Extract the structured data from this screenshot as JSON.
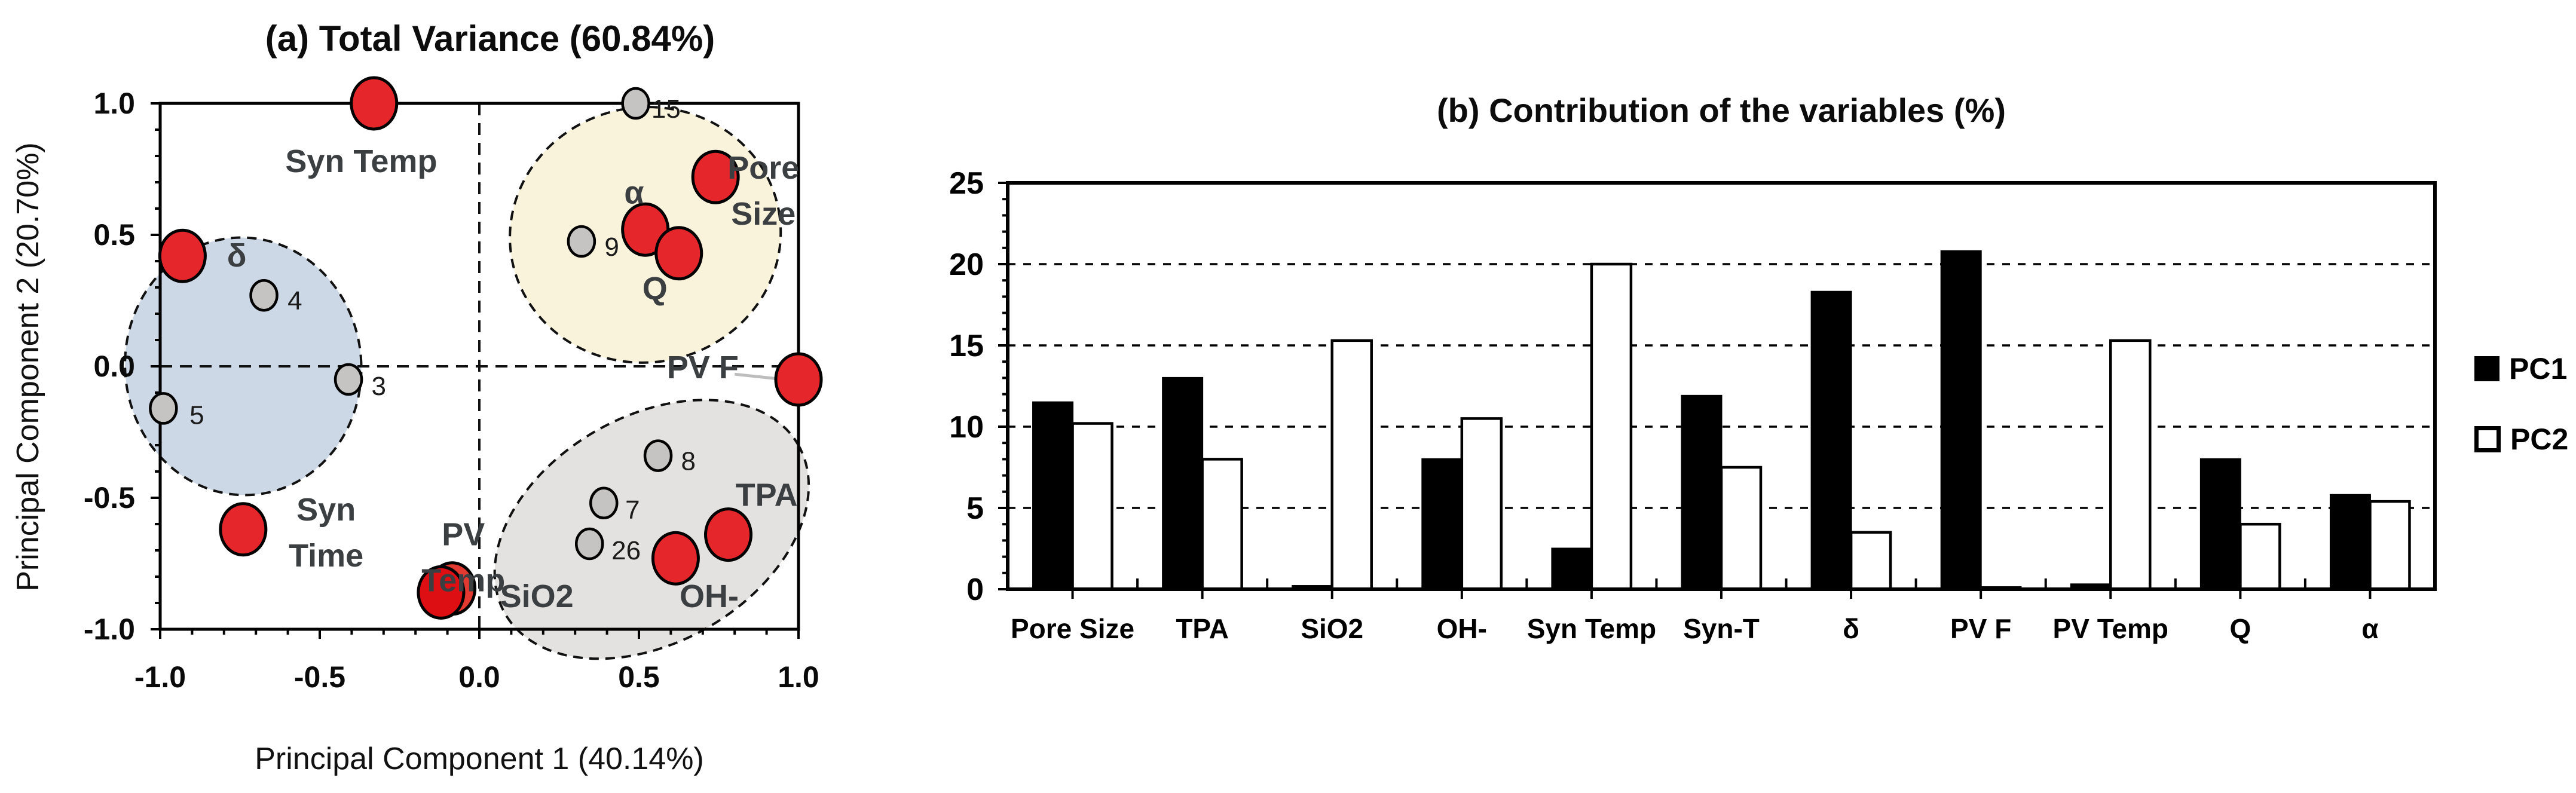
{
  "figure": {
    "background": "#ffffff"
  },
  "panel_a": {
    "title": "(a) Total Variance (60.84%)",
    "xlabel": "Principal Component 1 (40.14%)",
    "ylabel": "Principal Component 2 (20.70%)"
  },
  "panel_b": {
    "title": "(b) Contribution of the variables (%)",
    "legend": {
      "pc1": "PC1",
      "pc2": "PC2"
    }
  },
  "colors": {
    "red_point": "#e5262b",
    "red_point_dark": "#de0f13",
    "gray_point": "#c6c4c2",
    "point_outline": "#000000",
    "ellipse_blue": "#cdd8e6",
    "ellipse_cream": "#faf3dc",
    "ellipse_gray": "#e3e2e1",
    "label_text": "#3c3f41",
    "number_text": "#1b1b1b",
    "bar_pc1": "#000000",
    "bar_pc2": "#ffffff",
    "leader_line": "#bdbdbd"
  },
  "chart_data": [
    {
      "type": "scatter",
      "title": "(a) Total Variance (60.84%)",
      "xlabel": "Principal Component 1 (40.14%)",
      "ylabel": "Principal Component 2 (20.70%)",
      "xlim": [
        -1.0,
        1.0
      ],
      "ylim": [
        -1.0,
        1.0
      ],
      "xticks": [
        "-1.0",
        "-0.5",
        "0.0",
        "0.5",
        "1.0"
      ],
      "yticks": [
        "-1.0",
        "-0.5",
        "0.0",
        "0.5",
        "1.0"
      ],
      "minor_tick_step": 0.1,
      "zero_lines": true,
      "grid": false,
      "ellipses": [
        {
          "name": "cluster-blue",
          "cx": -0.74,
          "cy": 0.0,
          "rx": 0.37,
          "ry": 0.49,
          "rotation": -5,
          "fill": "#cdd8e6"
        },
        {
          "name": "cluster-cream",
          "cx": 0.52,
          "cy": 0.5,
          "rx": 0.425,
          "ry": 0.485,
          "rotation": -10,
          "fill": "#faf3dc"
        },
        {
          "name": "cluster-gray",
          "cx": 0.54,
          "cy": -0.62,
          "rx": 0.53,
          "ry": 0.43,
          "rotation": -30,
          "fill": "#e3e2e1"
        }
      ],
      "variables": [
        {
          "name": "Syn Temp",
          "x": -0.33,
          "y": 1.0,
          "label_lines": [
            "Syn Temp"
          ],
          "label_x": -0.37,
          "label_y": 0.78
        },
        {
          "name": "delta",
          "x": -0.93,
          "y": 0.42,
          "label_lines": [
            "δ"
          ],
          "label_x": -0.76,
          "label_y": 0.42
        },
        {
          "name": "Syn Time",
          "x": -0.74,
          "y": -0.62,
          "label_lines": [
            "Syn",
            "Time"
          ],
          "label_x": -0.48,
          "label_y": -0.545
        },
        {
          "name": "SiO2",
          "x": -0.085,
          "y": -0.845,
          "label_lines": [
            "SiO2"
          ],
          "label_x": 0.18,
          "label_y": -0.875,
          "fill": "#e23a30"
        },
        {
          "name": "PV Temp",
          "x": -0.12,
          "y": -0.86,
          "label_lines": [
            "PV",
            "Temp"
          ],
          "label_x": -0.05,
          "label_y": -0.64,
          "fill": "#de0f13"
        },
        {
          "name": "Pore Size",
          "x": 0.74,
          "y": 0.72,
          "label_lines": [
            "Pore",
            "Size"
          ],
          "label_x": 0.89,
          "label_y": 0.755
        },
        {
          "name": "alpha",
          "x": 0.52,
          "y": 0.52,
          "label_lines": [
            "α"
          ],
          "label_x": 0.485,
          "label_y": 0.66
        },
        {
          "name": "Q",
          "x": 0.625,
          "y": 0.43,
          "label_lines": [
            "Q"
          ],
          "label_x": 0.55,
          "label_y": 0.295
        },
        {
          "name": "PV F",
          "x": 1.0,
          "y": -0.05,
          "label_lines": [
            "PV F"
          ],
          "label_x": 0.7,
          "label_y": -0.005,
          "leader": {
            "x1": 0.8,
            "y1": -0.03,
            "x2": 0.955,
            "y2": -0.05
          }
        },
        {
          "name": "TPA",
          "x": 0.78,
          "y": -0.64,
          "label_lines": [
            "TPA"
          ],
          "label_x": 0.9,
          "label_y": -0.49
        },
        {
          "name": "OH-",
          "x": 0.615,
          "y": -0.73,
          "label_lines": [
            "OH-"
          ],
          "label_x": 0.72,
          "label_y": -0.875
        }
      ],
      "observations": [
        {
          "name": "15",
          "x": 0.49,
          "y": 1.0,
          "label_x": 0.585,
          "label_y": 0.98
        },
        {
          "name": "9",
          "x": 0.32,
          "y": 0.475,
          "label_x": 0.415,
          "label_y": 0.455
        },
        {
          "name": "4",
          "x": -0.675,
          "y": 0.27,
          "label_x": -0.578,
          "label_y": 0.25
        },
        {
          "name": "3",
          "x": -0.41,
          "y": -0.05,
          "label_x": -0.315,
          "label_y": -0.075
        },
        {
          "name": "5",
          "x": -0.99,
          "y": -0.16,
          "label_x": -0.885,
          "label_y": -0.185
        },
        {
          "name": "8",
          "x": 0.56,
          "y": -0.34,
          "label_x": 0.655,
          "label_y": -0.36
        },
        {
          "name": "7",
          "x": 0.39,
          "y": -0.52,
          "label_x": 0.48,
          "label_y": -0.545
        },
        {
          "name": "26",
          "x": 0.345,
          "y": -0.675,
          "label_x": 0.46,
          "label_y": -0.7
        }
      ]
    },
    {
      "type": "bar",
      "title": "(b) Contribution of the variables (%)",
      "categories": [
        "Pore Size",
        "TPA",
        "SiO2",
        "OH-",
        "Syn Temp",
        "Syn-T",
        "δ",
        "PV F",
        "PV Temp",
        "Q",
        "α"
      ],
      "series": [
        {
          "name": "PC1",
          "fill": "#000000",
          "values": [
            11.5,
            13.0,
            0.2,
            8.0,
            2.5,
            11.9,
            18.3,
            20.8,
            0.3,
            8.0,
            5.8
          ]
        },
        {
          "name": "PC2",
          "fill": "#ffffff",
          "values": [
            10.2,
            8.0,
            15.3,
            10.5,
            20.0,
            7.5,
            3.5,
            0.1,
            15.3,
            4.0,
            5.4
          ]
        }
      ],
      "ylim": [
        0,
        25
      ],
      "yticks": [
        0,
        5,
        10,
        15,
        20,
        25
      ],
      "gridlines": [
        5,
        10,
        15,
        20
      ],
      "minor_tick_step": 1,
      "legend_position": "right",
      "legend_entries": [
        "PC1",
        "PC2"
      ]
    }
  ]
}
